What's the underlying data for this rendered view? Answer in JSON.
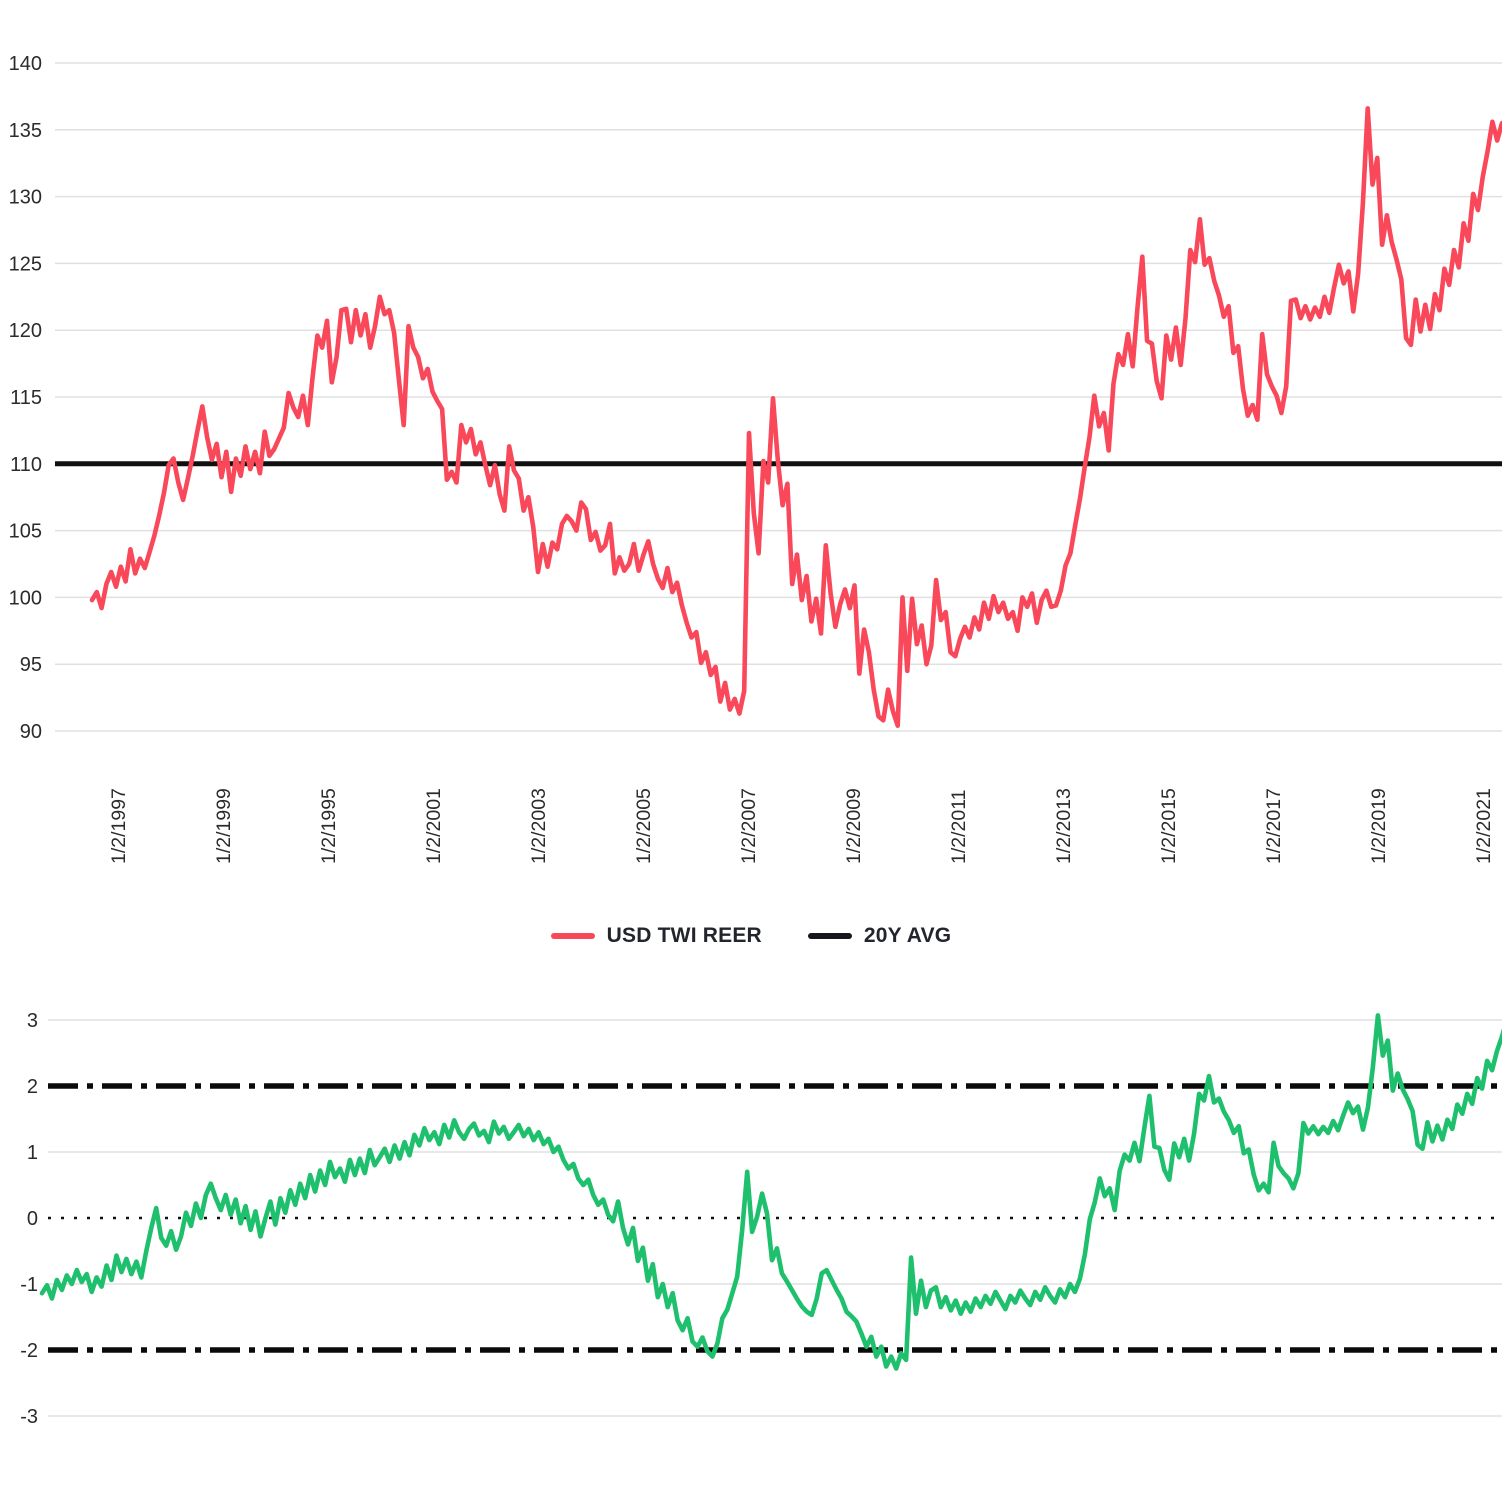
{
  "legend": {
    "items": [
      {
        "label": "USD TWI REER",
        "color": "#F9485A"
      },
      {
        "label": "20Y AVG",
        "color": "#16171c"
      }
    ]
  },
  "colors": {
    "reer_line": "#F9485A",
    "avg_line": "#101010",
    "zscore_line": "#1FC06D",
    "band_line": "#0a0a0a",
    "zero_line": "#111111",
    "gridline": "#e0e0e0",
    "tick_text": "#2b2b2b"
  },
  "chart_data": [
    {
      "type": "line",
      "title": "",
      "xlabel": "",
      "ylabel": "",
      "grid": true,
      "legend_position": "bottom",
      "ylim": [
        87.6,
        142.7
      ],
      "y_ticks": [
        140,
        135,
        130,
        125,
        120,
        115,
        110,
        105,
        100,
        95,
        90
      ],
      "x_tick_labels": [
        "1/2/1997",
        "1/2/1999",
        "1/2/1995",
        "1/2/2001",
        "1/2/2003",
        "1/2/2005",
        "1/2/2007",
        "1/2/2009",
        "1/2/2011",
        "1/2/2013",
        "1/2/2015",
        "1/2/2017",
        "1/2/2019",
        "1/2/2021"
      ],
      "series": [
        {
          "name": "USD TWI REER",
          "values": [
            99.8,
            100.4,
            99.2,
            101.0,
            101.9,
            100.8,
            102.3,
            101.2,
            103.6,
            101.8,
            102.9,
            102.2,
            103.4,
            104.6,
            106.1,
            107.8,
            109.9,
            110.4,
            108.6,
            107.3,
            108.9,
            110.6,
            112.5,
            114.3,
            112.0,
            110.3,
            111.5,
            109.0,
            110.9,
            107.9,
            110.4,
            109.1,
            111.3,
            109.6,
            110.9,
            109.3,
            112.4,
            110.6,
            111.1,
            111.9,
            112.7,
            115.3,
            114.2,
            113.5,
            115.1,
            112.9,
            116.5,
            119.6,
            118.7,
            120.7,
            116.1,
            118.0,
            121.5,
            121.6,
            119.1,
            121.5,
            119.6,
            121.2,
            118.7,
            120.3,
            122.5,
            121.2,
            121.5,
            119.8,
            116.3,
            112.9,
            120.3,
            118.7,
            118.0,
            116.4,
            117.1,
            115.4,
            114.7,
            114.1,
            108.8,
            109.4,
            108.6,
            112.9,
            111.6,
            112.6,
            110.7,
            111.6,
            109.9,
            108.4,
            109.9,
            107.7,
            106.5,
            111.3,
            109.5,
            108.9,
            106.5,
            107.5,
            105.3,
            101.9,
            104.0,
            102.3,
            104.1,
            103.6,
            105.5,
            106.1,
            105.7,
            105.0,
            107.1,
            106.6,
            104.3,
            104.9,
            103.5,
            103.9,
            105.5,
            101.8,
            103.0,
            102.0,
            102.5,
            104.0,
            102.0,
            103.2,
            104.2,
            102.5,
            101.4,
            100.7,
            102.2,
            100.4,
            101.1,
            99.4,
            98.1,
            97.0,
            97.4,
            95.1,
            95.9,
            94.2,
            94.8,
            92.2,
            93.6,
            91.6,
            92.4,
            91.3,
            93.0,
            112.3,
            106.3,
            103.3,
            110.2,
            108.6,
            114.9,
            110.3,
            106.9,
            108.5,
            101.0,
            103.2,
            99.8,
            101.6,
            98.2,
            99.9,
            97.3,
            103.9,
            100.3,
            97.8,
            99.5,
            100.6,
            99.2,
            100.9,
            94.3,
            97.6,
            95.9,
            93.1,
            91.1,
            90.8,
            93.1,
            91.5,
            90.4,
            100.0,
            94.5,
            99.9,
            96.5,
            97.9,
            95.0,
            96.4,
            101.3,
            98.3,
            98.9,
            95.9,
            95.6,
            96.9,
            97.8,
            97.0,
            98.5,
            97.6,
            99.6,
            98.4,
            100.1,
            98.9,
            99.6,
            98.4,
            98.9,
            97.5,
            100.0,
            99.3,
            100.3,
            98.1,
            99.8,
            100.5,
            99.3,
            99.4,
            100.5,
            102.4,
            103.3,
            105.4,
            107.4,
            109.8,
            112.0,
            115.1,
            112.8,
            113.8,
            111.0,
            116.0,
            118.2,
            117.4,
            119.7,
            117.3,
            121.7,
            125.5,
            119.2,
            119.0,
            116.2,
            114.9,
            119.6,
            117.8,
            120.2,
            117.4,
            120.9,
            126.0,
            125.1,
            128.3,
            124.9,
            125.4,
            123.7,
            122.6,
            121.0,
            121.8,
            118.3,
            118.8,
            115.6,
            113.6,
            114.4,
            113.3,
            119.7,
            116.7,
            115.8,
            115.1,
            113.8,
            115.8,
            122.2,
            122.3,
            120.9,
            121.8,
            120.8,
            121.7,
            121.0,
            122.5,
            121.3,
            123.2,
            124.9,
            123.5,
            124.4,
            121.4,
            124.2,
            129.5,
            136.6,
            130.9,
            132.9,
            126.4,
            128.6,
            126.6,
            125.3,
            123.8,
            119.4,
            118.9,
            122.3,
            119.9,
            121.9,
            120.1,
            122.7,
            121.5,
            124.6,
            123.4,
            126.0,
            124.7,
            128.0,
            126.7,
            130.2,
            129.0,
            131.5,
            133.4,
            135.6,
            134.2,
            135.5
          ]
        },
        {
          "name": "20Y AVG",
          "constant_value": 110
        }
      ]
    },
    {
      "type": "line",
      "title": "",
      "xlabel": "",
      "ylabel": "",
      "grid": true,
      "ylim": [
        -3.6,
        3.3
      ],
      "y_ticks": [
        3,
        2,
        1,
        0,
        -1,
        -2,
        -3
      ],
      "x_tick_labels": [],
      "reference_lines": [
        {
          "value": 2,
          "style": "dash-dot"
        },
        {
          "value": 0,
          "style": "dotted"
        },
        {
          "value": -2,
          "style": "dash-dot"
        }
      ],
      "series": [
        {
          "name": "",
          "values": [
            -1.14,
            -1.02,
            -1.22,
            -0.94,
            -1.09,
            -0.87,
            -1.0,
            -0.79,
            -0.97,
            -0.85,
            -1.12,
            -0.9,
            -1.04,
            -0.72,
            -0.94,
            -0.57,
            -0.82,
            -0.62,
            -0.85,
            -0.66,
            -0.9,
            -0.5,
            -0.15,
            0.15,
            -0.3,
            -0.42,
            -0.2,
            -0.48,
            -0.28,
            0.08,
            -0.12,
            0.22,
            0.0,
            0.35,
            0.52,
            0.3,
            0.12,
            0.35,
            0.05,
            0.28,
            -0.08,
            0.18,
            -0.18,
            0.1,
            -0.28,
            0.0,
            0.25,
            -0.1,
            0.3,
            0.08,
            0.42,
            0.2,
            0.52,
            0.3,
            0.65,
            0.4,
            0.72,
            0.5,
            0.85,
            0.62,
            0.75,
            0.55,
            0.88,
            0.65,
            0.9,
            0.68,
            1.03,
            0.8,
            0.92,
            1.05,
            0.85,
            1.1,
            0.9,
            1.15,
            0.95,
            1.26,
            1.1,
            1.36,
            1.18,
            1.3,
            1.12,
            1.41,
            1.22,
            1.48,
            1.3,
            1.2,
            1.35,
            1.43,
            1.25,
            1.32,
            1.15,
            1.46,
            1.28,
            1.38,
            1.2,
            1.3,
            1.41,
            1.24,
            1.35,
            1.18,
            1.3,
            1.12,
            1.2,
            1.0,
            1.08,
            0.88,
            0.75,
            0.82,
            0.6,
            0.5,
            0.58,
            0.35,
            0.2,
            0.28,
            0.05,
            -0.05,
            0.25,
            -0.15,
            -0.4,
            -0.15,
            -0.65,
            -0.45,
            -0.95,
            -0.7,
            -1.2,
            -1.0,
            -1.35,
            -1.14,
            -1.55,
            -1.7,
            -1.52,
            -1.87,
            -1.95,
            -1.81,
            -2.02,
            -2.1,
            -1.9,
            -1.52,
            -1.39,
            -1.14,
            -0.89,
            -0.18,
            0.7,
            -0.21,
            0.02,
            0.37,
            0.07,
            -0.64,
            -0.46,
            -0.84,
            -0.96,
            -1.09,
            -1.22,
            -1.34,
            -1.42,
            -1.47,
            -1.22,
            -0.84,
            -0.79,
            -0.94,
            -1.09,
            -1.22,
            -1.42,
            -1.49,
            -1.57,
            -1.75,
            -1.95,
            -1.8,
            -2.1,
            -1.95,
            -2.25,
            -2.1,
            -2.28,
            -2.05,
            -2.15,
            -0.6,
            -1.45,
            -0.95,
            -1.35,
            -1.1,
            -1.05,
            -1.35,
            -1.2,
            -1.4,
            -1.25,
            -1.45,
            -1.28,
            -1.42,
            -1.22,
            -1.35,
            -1.18,
            -1.3,
            -1.12,
            -1.25,
            -1.38,
            -1.18,
            -1.28,
            -1.1,
            -1.22,
            -1.32,
            -1.12,
            -1.24,
            -1.05,
            -1.18,
            -1.28,
            -1.08,
            -1.2,
            -1.0,
            -1.12,
            -0.92,
            -0.55,
            -0.02,
            0.24,
            0.6,
            0.33,
            0.45,
            0.12,
            0.71,
            0.96,
            0.87,
            1.14,
            0.86,
            1.38,
            1.85,
            1.08,
            1.06,
            0.73,
            0.58,
            1.13,
            0.92,
            1.2,
            0.87,
            1.28,
            1.88,
            1.78,
            2.15,
            1.75,
            1.81,
            1.61,
            1.48,
            1.29,
            1.39,
            0.98,
            1.04,
            0.66,
            0.42,
            0.52,
            0.39,
            1.14,
            0.79,
            0.68,
            0.6,
            0.45,
            0.68,
            1.44,
            1.28,
            1.39,
            1.27,
            1.38,
            1.29,
            1.47,
            1.33,
            1.55,
            1.75,
            1.59,
            1.69,
            1.34,
            1.67,
            2.29,
            3.07,
            2.46,
            2.69,
            1.93,
            2.19,
            1.95,
            1.8,
            1.62,
            1.11,
            1.05,
            1.45,
            1.16,
            1.4,
            1.19,
            1.49,
            1.35,
            1.72,
            1.58,
            1.88,
            1.73,
            2.12,
            1.96,
            2.38,
            2.24,
            2.53,
            2.75,
            3.01,
            2.85,
            3.05
          ]
        }
      ]
    }
  ]
}
